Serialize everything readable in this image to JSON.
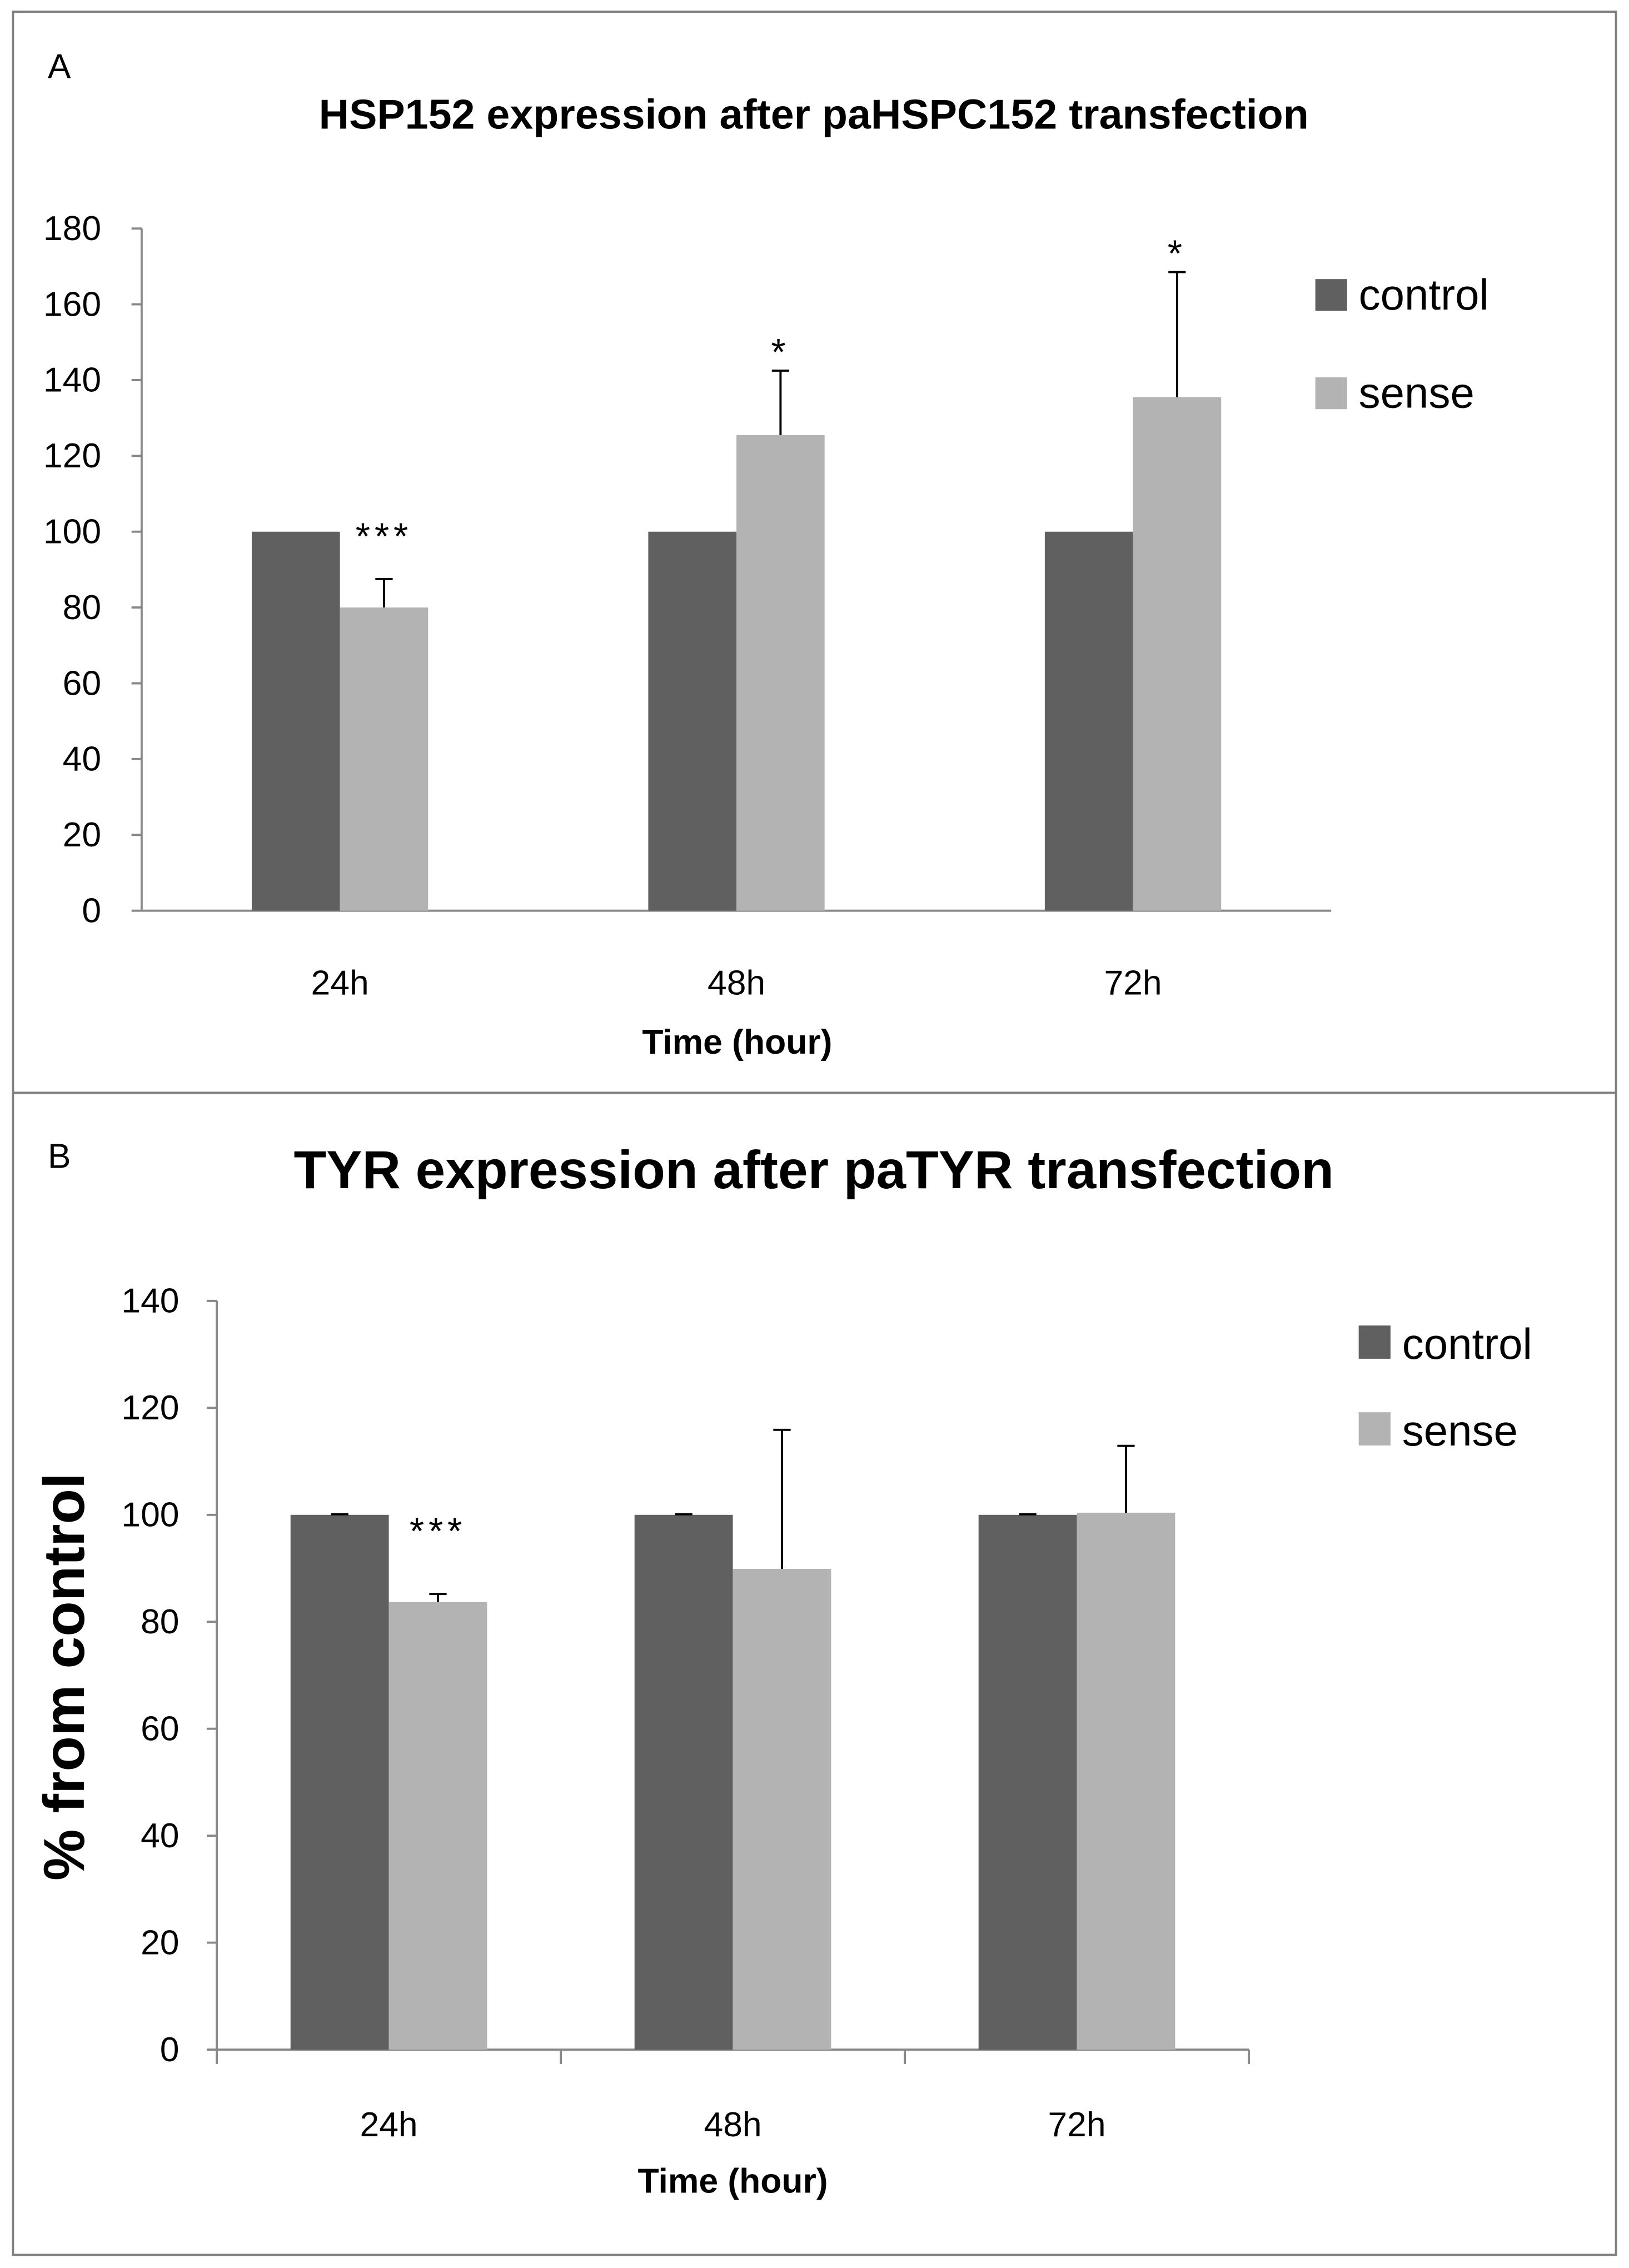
{
  "colors": {
    "control": "#606060",
    "sense": "#b3b3b3",
    "axis": "#888888",
    "border": "#808080"
  },
  "chart_data": [
    {
      "type": "bar",
      "panel_label": "A",
      "title": "HSP152 expression after paHSPC152 transfection",
      "xlabel": "Time (hour)",
      "ylabel": "",
      "ylim": [
        0,
        180
      ],
      "yticks": [
        0,
        20,
        40,
        60,
        80,
        100,
        120,
        140,
        160,
        180
      ],
      "categories": [
        "24h",
        "48h",
        "72h"
      ],
      "legend_position": "top-right",
      "series": [
        {
          "name": "control",
          "values": [
            100,
            100,
            100
          ],
          "errors": [
            0,
            0,
            0
          ]
        },
        {
          "name": "sense",
          "values": [
            80,
            125.5,
            135.5
          ],
          "errors": [
            7.5,
            17,
            33
          ]
        }
      ],
      "annotations": [
        "***",
        "*",
        "*"
      ]
    },
    {
      "type": "bar",
      "panel_label": "B",
      "title": "TYR expression after paTYR transfection",
      "xlabel": "Time (hour)",
      "ylabel": "% from control",
      "ylim": [
        0,
        140
      ],
      "yticks": [
        0,
        20,
        40,
        60,
        80,
        100,
        120,
        140
      ],
      "categories": [
        "24h",
        "48h",
        "72h"
      ],
      "legend_position": "top-right",
      "series": [
        {
          "name": "control",
          "values": [
            100,
            100,
            100
          ],
          "errors": [
            0.1,
            0.1,
            0.1
          ]
        },
        {
          "name": "sense",
          "values": [
            83.7,
            89.9,
            100.4
          ],
          "errors": [
            1.5,
            26,
            12.5
          ]
        }
      ],
      "annotations": [
        "***",
        "",
        ""
      ]
    }
  ]
}
